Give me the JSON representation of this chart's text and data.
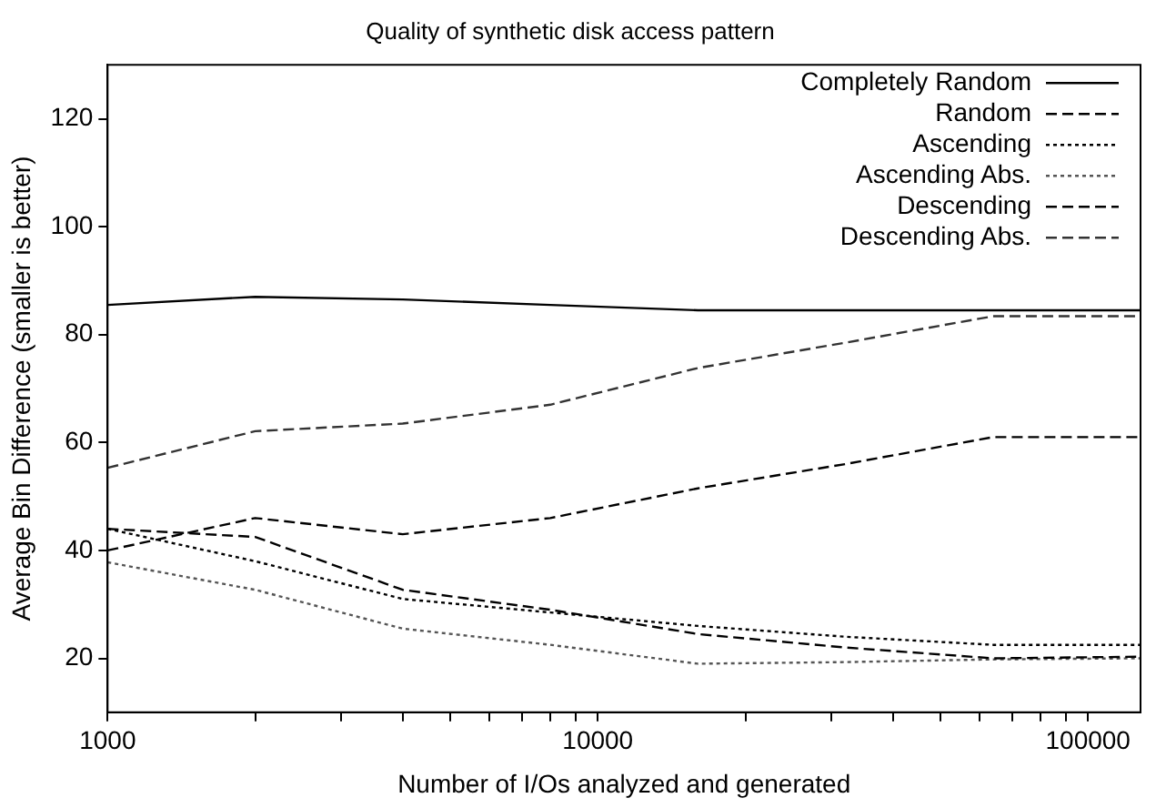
{
  "chart_data": {
    "type": "line",
    "title": "Quality of synthetic disk access pattern",
    "xlabel": "Number of I/Os analyzed and generated",
    "ylabel": "Average Bin Difference (smaller is better)",
    "x": [
      1000,
      2000,
      4000,
      8000,
      16000,
      32000,
      64000,
      128000
    ],
    "log": "x",
    "xlim": [
      1000,
      128000
    ],
    "xticks": [
      1000,
      {
        "value": 2000,
        "label": null
      },
      {
        "value": 3000,
        "label": null
      },
      {
        "value": 4000,
        "label": null
      },
      {
        "value": 5000,
        "label": null
      },
      {
        "value": 6000,
        "label": null
      },
      {
        "value": 7000,
        "label": null
      },
      {
        "value": 8000,
        "label": null
      },
      {
        "value": 9000,
        "label": null
      },
      10000,
      {
        "value": 20000,
        "label": null
      },
      {
        "value": 30000,
        "label": null
      },
      {
        "value": 40000,
        "label": null
      },
      {
        "value": 50000,
        "label": null
      },
      {
        "value": 60000,
        "label": null
      },
      {
        "value": 70000,
        "label": null
      },
      {
        "value": 80000,
        "label": null
      },
      {
        "value": 90000,
        "label": null
      },
      100000
    ],
    "ylim": [
      10,
      130
    ],
    "yticks": [
      20,
      40,
      60,
      80,
      100,
      120
    ],
    "grid": false,
    "legend": "top right",
    "marker": "none",
    "series": [
      {
        "name": "Completely Random",
        "color": "#000000",
        "line_style": "solid",
        "values": [
          85.5,
          87,
          86.5,
          85.5,
          84.5,
          84.5,
          84.5,
          84.5
        ]
      },
      {
        "name": "Random",
        "color": "#000000",
        "line_style": "dashed",
        "values": [
          44,
          42.5,
          32.7,
          29,
          24.5,
          22,
          20,
          20.3
        ]
      },
      {
        "name": "Ascending",
        "color": "#000000",
        "line_style": "dotted",
        "values": [
          44,
          38,
          31,
          28.5,
          26,
          24,
          22.5,
          22.5
        ]
      },
      {
        "name": "Ascending Abs.",
        "color": "#555555",
        "line_style": "dotted",
        "values": [
          37.8,
          32.7,
          25.5,
          22.5,
          19,
          19.3,
          19.8,
          20
        ]
      },
      {
        "name": "Descending",
        "color": "#000000",
        "line_style": "dashed",
        "values": [
          40,
          46,
          43,
          46,
          51.5,
          56,
          61,
          61
        ]
      },
      {
        "name": "Descending Abs.",
        "color": "#333333",
        "line_style": "dashed",
        "values": [
          55.3,
          62.1,
          63.5,
          67,
          73.8,
          78.5,
          83.4,
          83.4
        ]
      }
    ]
  }
}
